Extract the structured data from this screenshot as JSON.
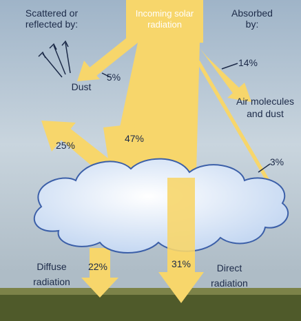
{
  "labels": {
    "scattered": [
      "Scattered or",
      "reflected by:"
    ],
    "incoming": [
      "Incoming solar",
      "radiation"
    ],
    "absorbed": [
      "Absorbed",
      "by:"
    ],
    "dust": [
      "Dust"
    ],
    "dust_pct": [
      "5%"
    ],
    "air_pct": [
      "14%"
    ],
    "air": [
      "Air molecules",
      "and dust"
    ],
    "reflected_pct": [
      "25%"
    ],
    "cloud_pct": [
      "47%"
    ],
    "cloud_abs_pct": [
      "3%"
    ],
    "diffuse_pct": [
      "22%"
    ],
    "direct_pct": [
      "31%"
    ],
    "diffuse": [
      "Diffuse",
      "radiation"
    ],
    "direct": [
      "Direct",
      "radiation"
    ]
  }
}
